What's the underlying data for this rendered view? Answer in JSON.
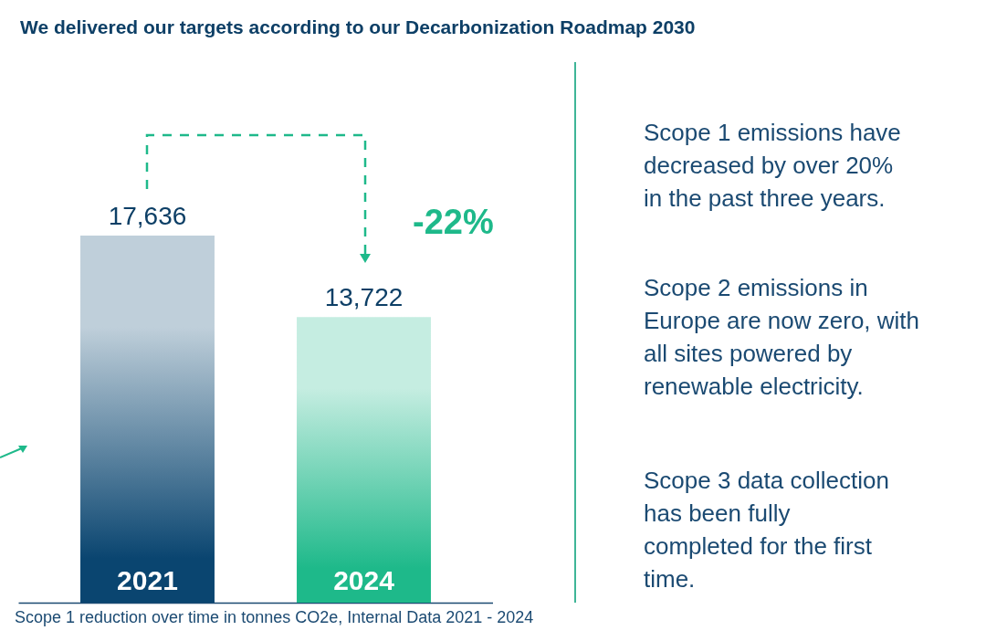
{
  "chart_data": {
    "type": "bar",
    "title": "We delivered our targets according to our Decarbonization Roadmap 2030",
    "categories": [
      "2021",
      "2024"
    ],
    "values": [
      17636,
      13722
    ],
    "colors": [
      "#0a4570",
      "#1eb98a"
    ],
    "value_labels": [
      "17,636",
      "13,722"
    ],
    "annotations": [
      "-22%",
      "Scope 1 emissions have decreased by over 20% in the past three years.",
      "Scope 2 emissions in Europe are now zero, with all sites powered by renewable electricity.",
      "Scope 3 data collection has been fully completed for the first time.",
      "Scope 1 reduction over time in tonnes CO2e, Internal Data 2021 - 2024"
    ]
  }
}
